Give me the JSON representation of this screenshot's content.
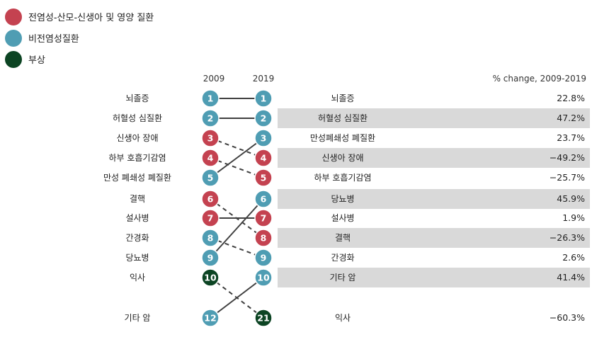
{
  "colors": {
    "communicable": "#c44250",
    "noncommunicable": "#4f9db3",
    "injury": "#0c4423",
    "band": "#d9d9d9",
    "line": "#404040",
    "ring": "#ffffff"
  },
  "chart_data": {
    "type": "slope",
    "legend": [
      {
        "label": "전염성-산모-신생아 및 영양 질환",
        "group": "communicable"
      },
      {
        "label": "비전염성질환",
        "group": "noncommunicable"
      },
      {
        "label": "부상",
        "group": "injury"
      }
    ],
    "headers": {
      "year_left": "2009",
      "year_right": "2019",
      "change": "% change, 2009-2019"
    },
    "left": [
      {
        "label": "뇌졸증",
        "rank": "1",
        "group": "noncommunicable"
      },
      {
        "label": "허혈성 심질환",
        "rank": "2",
        "group": "noncommunicable"
      },
      {
        "label": "신생아 장애",
        "rank": "3",
        "group": "communicable"
      },
      {
        "label": "하부 호흡기감염",
        "rank": "4",
        "group": "communicable"
      },
      {
        "label": "만성 폐쇄성 폐질환",
        "rank": "5",
        "group": "noncommunicable"
      },
      {
        "label": "결핵",
        "rank": "6",
        "group": "communicable"
      },
      {
        "label": "설사병",
        "rank": "7",
        "group": "communicable"
      },
      {
        "label": "간경화",
        "rank": "8",
        "group": "noncommunicable"
      },
      {
        "label": "당뇨병",
        "rank": "9",
        "group": "noncommunicable"
      },
      {
        "label": "익사",
        "rank": "10",
        "group": "injury"
      },
      {
        "label": "기타 암",
        "rank": "12",
        "group": "noncommunicable"
      }
    ],
    "right": [
      {
        "label": "뇌졸증",
        "rank": "1",
        "group": "noncommunicable",
        "change": "22.8%",
        "band": false
      },
      {
        "label": "허혈성 심질환",
        "rank": "2",
        "group": "noncommunicable",
        "change": "47.2%",
        "band": true
      },
      {
        "label": "만성폐쇄성 폐질환",
        "rank": "3",
        "group": "noncommunicable",
        "change": "23.7%",
        "band": false
      },
      {
        "label": "신생아 장애",
        "rank": "4",
        "group": "communicable",
        "change": "−49.2%",
        "band": true
      },
      {
        "label": "하부 호흡기감염",
        "rank": "5",
        "group": "communicable",
        "change": "−25.7%",
        "band": false
      },
      {
        "label": "당뇨병",
        "rank": "6",
        "group": "noncommunicable",
        "change": "45.9%",
        "band": true
      },
      {
        "label": "설사병",
        "rank": "7",
        "group": "communicable",
        "change": "1.9%",
        "band": false
      },
      {
        "label": "결핵",
        "rank": "8",
        "group": "communicable",
        "change": "−26.3%",
        "band": true
      },
      {
        "label": "간경화",
        "rank": "9",
        "group": "noncommunicable",
        "change": "2.6%",
        "band": false
      },
      {
        "label": "기타 암",
        "rank": "10",
        "group": "noncommunicable",
        "change": "41.4%",
        "band": true
      },
      {
        "label": "익사",
        "rank": "21",
        "group": "injury",
        "change": "−60.3%",
        "band": false
      }
    ],
    "links": [
      {
        "from": 0,
        "to": 0,
        "style": "solid"
      },
      {
        "from": 1,
        "to": 1,
        "style": "solid"
      },
      {
        "from": 2,
        "to": 3,
        "style": "dashed"
      },
      {
        "from": 3,
        "to": 4,
        "style": "dashed"
      },
      {
        "from": 4,
        "to": 2,
        "style": "solid"
      },
      {
        "from": 5,
        "to": 7,
        "style": "dashed"
      },
      {
        "from": 6,
        "to": 6,
        "style": "solid"
      },
      {
        "from": 7,
        "to": 8,
        "style": "dashed"
      },
      {
        "from": 8,
        "to": 5,
        "style": "solid"
      },
      {
        "from": 9,
        "to": 10,
        "style": "dashed"
      },
      {
        "from": 10,
        "to": 9,
        "style": "solid"
      }
    ]
  }
}
